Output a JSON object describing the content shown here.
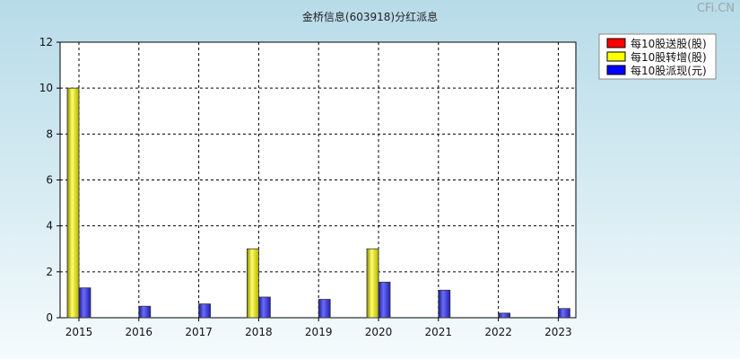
{
  "title": "金桥信息(603918)分红派息",
  "watermark": "CFi.CN",
  "chart_data": {
    "type": "bar",
    "categories": [
      "2015",
      "2016",
      "2017",
      "2018",
      "2019",
      "2020",
      "2021",
      "2022",
      "2023"
    ],
    "series": [
      {
        "name": "每10股送股(股)",
        "color": "#ff0000",
        "values": [
          0,
          0,
          0,
          0,
          0,
          0,
          0,
          0,
          0
        ]
      },
      {
        "name": "每10股转增(股)",
        "color": "#ffff00",
        "values": [
          10,
          0,
          0,
          3,
          0,
          3,
          0,
          0,
          0
        ]
      },
      {
        "name": "每10股派现(元)",
        "color": "#0000ff",
        "values": [
          1.3,
          0.5,
          0.6,
          0.9,
          0.8,
          1.55,
          1.2,
          0.2,
          0.4
        ]
      }
    ],
    "ylim": [
      0,
      12
    ],
    "yticks": [
      "0",
      "2",
      "4",
      "6",
      "8",
      "10",
      "12"
    ],
    "grid": true,
    "legend_position": "top-right"
  }
}
